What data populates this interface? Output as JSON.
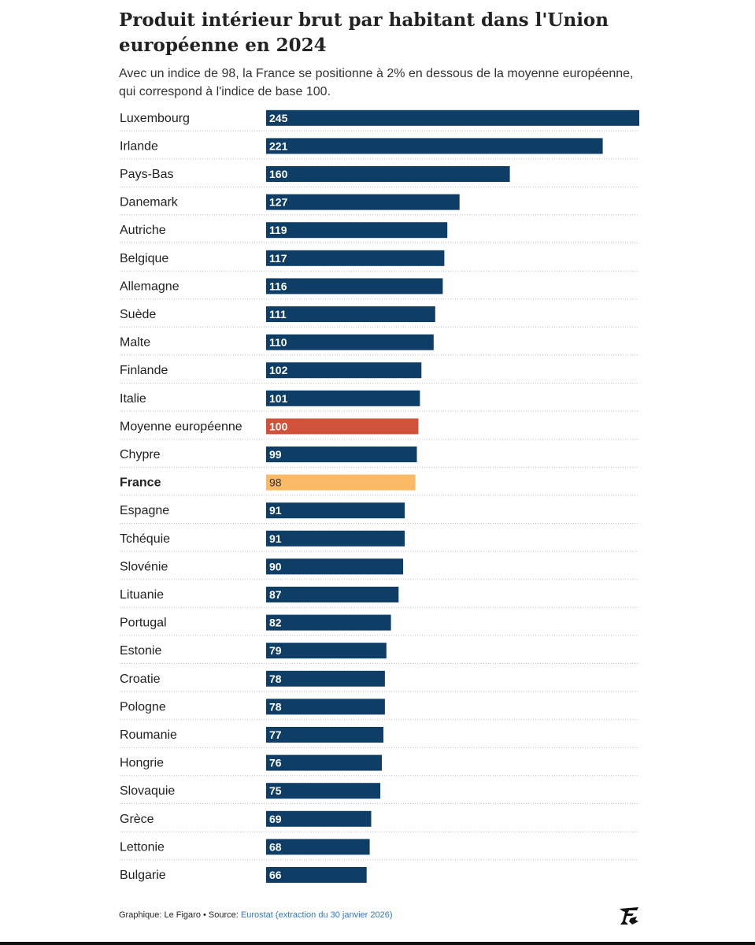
{
  "header": {
    "title": "Produit intérieur brut par habitant dans l'Union européenne en 2024",
    "subtitle": "Avec un indice de 98, la France se positionne à 2% en dessous de la moyenne européenne, qui correspond à l'indice de base 100."
  },
  "chart_data": {
    "type": "bar",
    "orientation": "horizontal",
    "categories": [
      "Luxembourg",
      "Irlande",
      "Pays-Bas",
      "Danemark",
      "Autriche",
      "Belgique",
      "Allemagne",
      "Suède",
      "Malte",
      "Finlande",
      "Italie",
      "Moyenne européenne",
      "Chypre",
      "France",
      "Espagne",
      "Tchéquie",
      "Slovénie",
      "Lituanie",
      "Portugal",
      "Estonie",
      "Croatie",
      "Pologne",
      "Roumanie",
      "Hongrie",
      "Slovaquie",
      "Grèce",
      "Lettonie",
      "Bulgarie"
    ],
    "values": [
      245,
      221,
      160,
      127,
      119,
      117,
      116,
      111,
      110,
      102,
      101,
      100,
      99,
      98,
      91,
      91,
      90,
      87,
      82,
      79,
      78,
      78,
      77,
      76,
      75,
      69,
      68,
      66
    ],
    "highlight": {
      "Moyenne européenne": "average",
      "France": "france"
    },
    "bold_categories": [
      "France"
    ],
    "colors": {
      "default": "#0e3d66",
      "average": "#d2513a",
      "france": "#f9b965",
      "label_on_dark": "#ffffff",
      "label_on_light": "#333333",
      "gridline": "#bdbdbd"
    },
    "xlim": [
      0,
      245
    ],
    "grid": "dotted row separators",
    "legend": "none",
    "data_labels": "inside bar start"
  },
  "footer": {
    "credit": "Graphique: Le Figaro • Source: ",
    "source_link": "Eurostat (extraction du 30 janvier 2026)",
    "logo_icon": "le-figaro-logo-icon"
  }
}
